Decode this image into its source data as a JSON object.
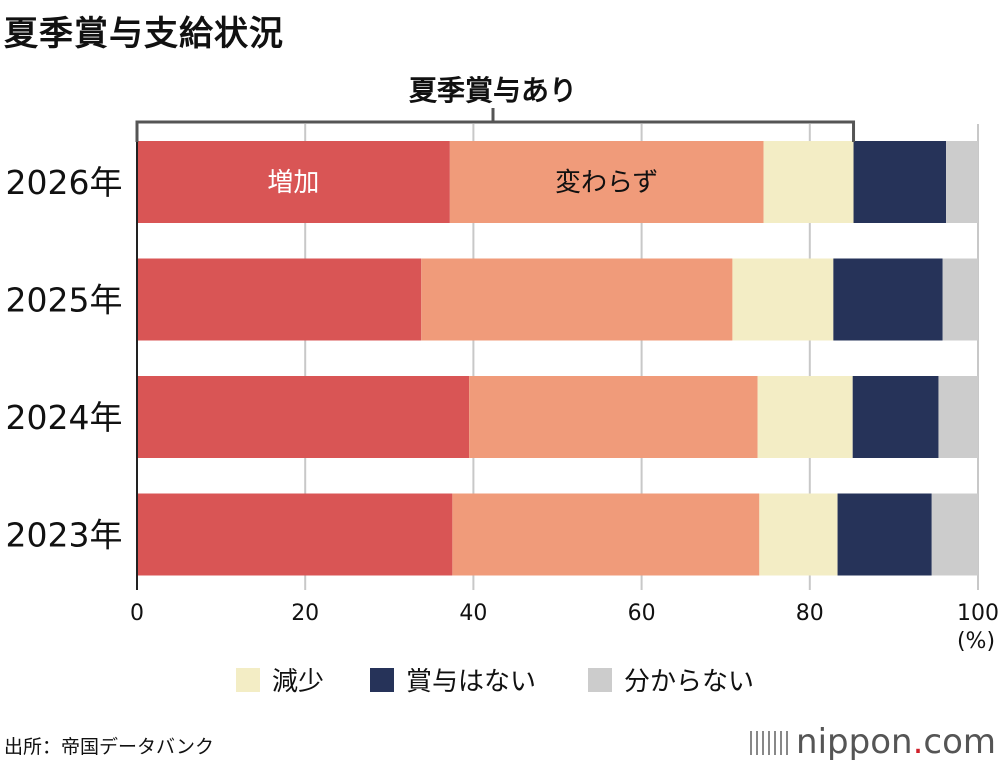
{
  "title": "夏季賞与支給状況",
  "source": "出所：帝国データバンク",
  "brand": {
    "name": "nippon",
    "dot": ".",
    "suffix": "com"
  },
  "bracket_label": "夏季賞与あり",
  "x_unit": "(%)",
  "colors": {
    "増加": "#d95555",
    "変わらず": "#f09b7a",
    "減少": "#f3edc5",
    "賞与はない": "#263359",
    "分からない": "#cccccc"
  },
  "chart_data": {
    "type": "bar",
    "orientation": "horizontal",
    "stacked": true,
    "categories": [
      "2026年",
      "2025年",
      "2024年",
      "2023年"
    ],
    "series": [
      {
        "name": "増加",
        "values": [
          37.2,
          33.8,
          39.5,
          37.5
        ]
      },
      {
        "name": "変わらず",
        "values": [
          37.3,
          37.0,
          34.3,
          36.5
        ]
      },
      {
        "name": "減少",
        "values": [
          10.7,
          12.0,
          11.3,
          9.3
        ]
      },
      {
        "name": "賞与はない",
        "values": [
          11.0,
          13.0,
          10.2,
          11.2
        ]
      },
      {
        "name": "分からない",
        "values": [
          3.8,
          4.2,
          4.7,
          5.5
        ]
      }
    ],
    "inline_labels": [
      "増加",
      "変わらず"
    ],
    "legend": [
      "減少",
      "賞与はない",
      "分からない"
    ],
    "legend_position": "bottom",
    "xlim": [
      0,
      100
    ],
    "xticks": [
      "0",
      "20",
      "40",
      "60",
      "80",
      "100"
    ],
    "bracket_range": [
      0,
      85.2
    ],
    "grid": true
  }
}
